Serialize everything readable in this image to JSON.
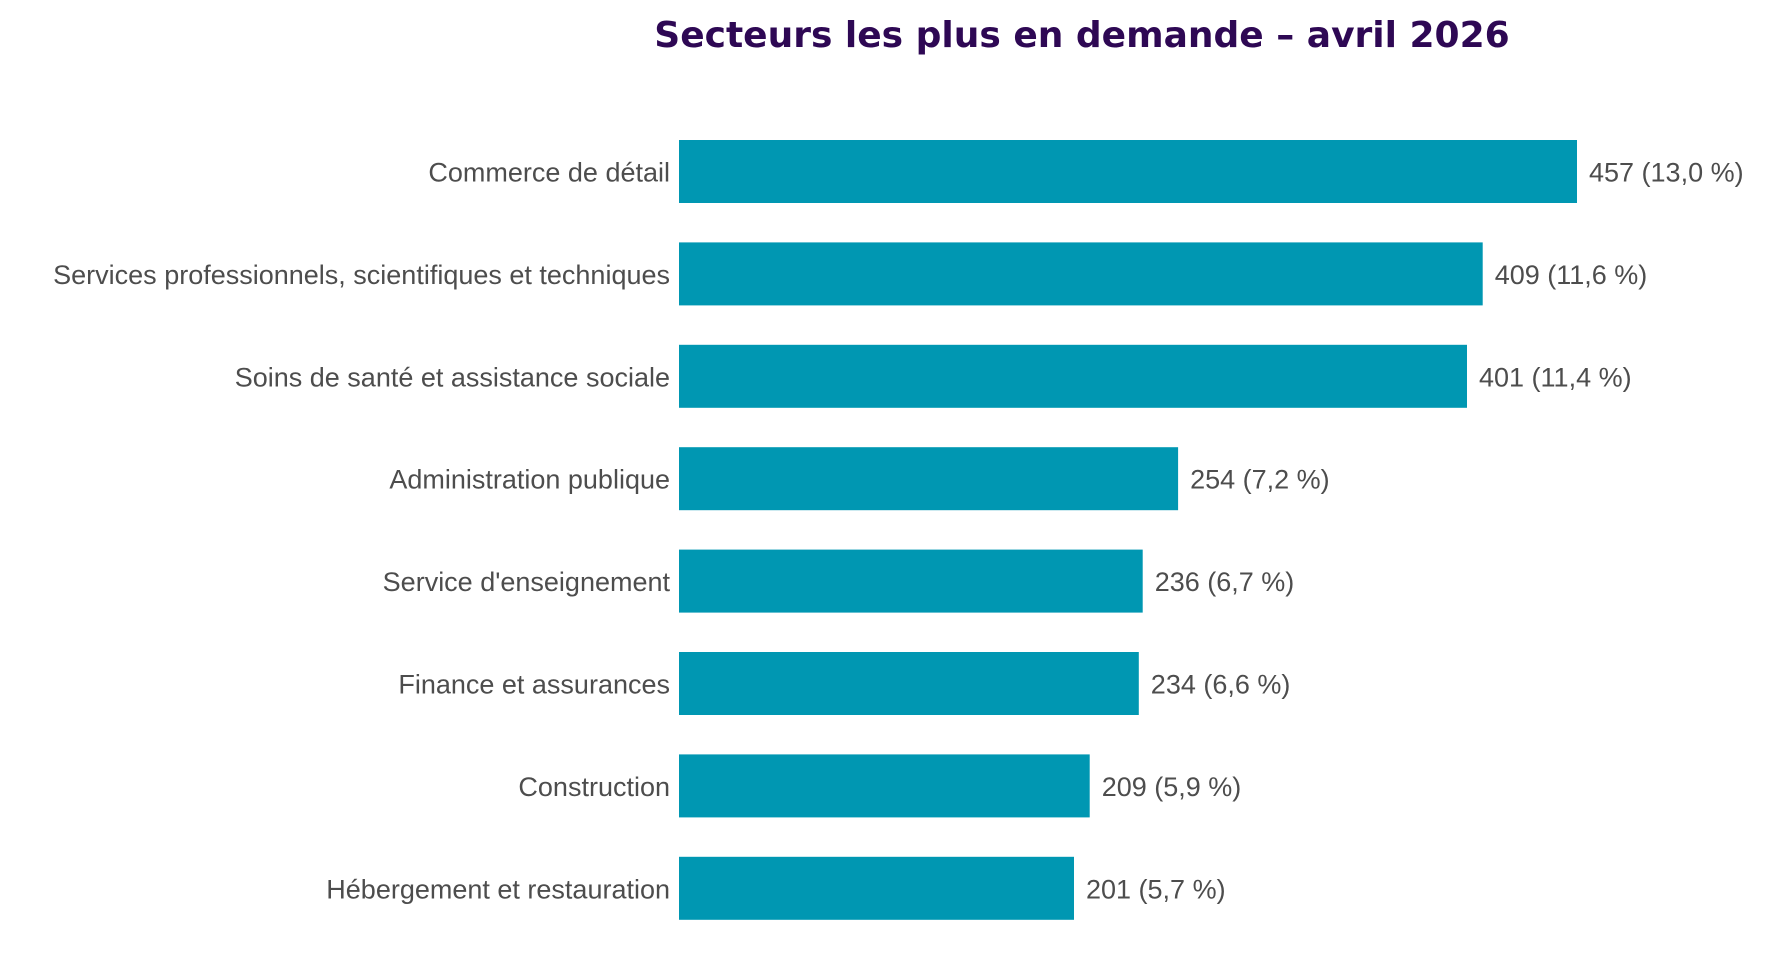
{
  "chart_data": {
    "type": "bar",
    "orientation": "horizontal",
    "title": "Secteurs les plus en demande – avril 2026",
    "categories": [
      "Commerce de détail",
      "Services professionnels, scientifiques et techniques",
      "Soins de santé et assistance sociale",
      "Administration publique",
      "Service d'enseignement",
      "Finance et assurances",
      "Construction",
      "Hébergement et restauration"
    ],
    "values": [
      457,
      409,
      401,
      254,
      236,
      234,
      209,
      201
    ],
    "data_labels": [
      "457  (13,0 %)",
      "409  (11,6 %)",
      "401  (11,4 %)",
      "254  (7,2 %)",
      "236  (6,7 %)",
      "234  (6,6 %)",
      "209  (5,9 %)",
      "201  (5,7 %)"
    ],
    "xlabel": "",
    "ylabel": "",
    "xlim": [
      0,
      457
    ],
    "grid": false,
    "legend": "none",
    "colors": {
      "bar": "#0097b2",
      "title": "#2e0854",
      "label": "#4d4d4d"
    }
  }
}
